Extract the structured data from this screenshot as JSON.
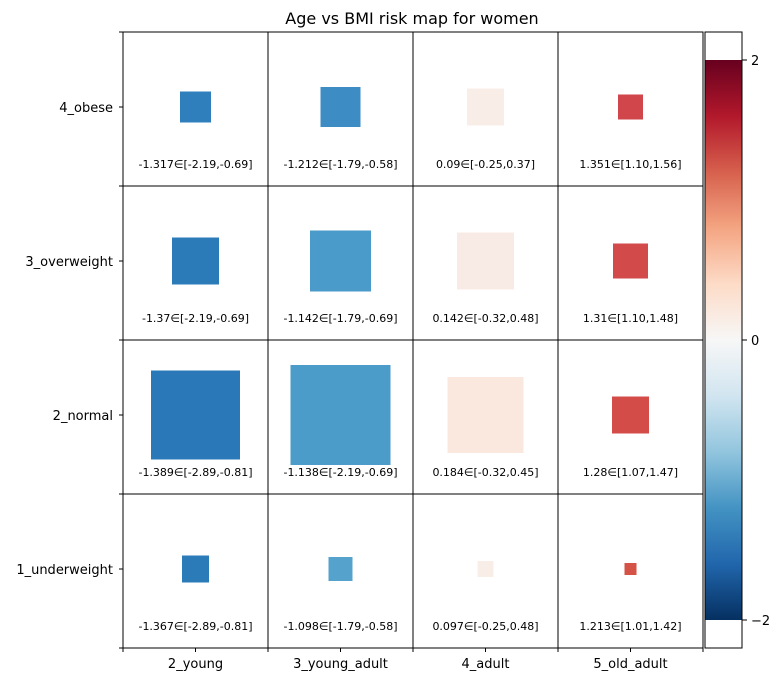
{
  "chart_data": {
    "type": "heatmap",
    "title": "Age vs BMI risk map for women",
    "x_categories": [
      "2_young",
      "3_young_adult",
      "4_adult",
      "5_old_adult"
    ],
    "y_categories": [
      "4_obese",
      "3_overweight",
      "2_normal",
      "1_underweight"
    ],
    "cells": [
      [
        {
          "value": -1.317,
          "ci": "[-2.19,-0.69]",
          "label": "-1.317∈[-2.19,-0.69]",
          "size": 0.31,
          "color": "#2f7fbc"
        },
        {
          "value": -1.212,
          "ci": "[-1.79,-0.58]",
          "label": "-1.212∈[-1.79,-0.58]",
          "size": 0.4,
          "color": "#3d8dc4"
        },
        {
          "value": 0.09,
          "ci": "[-0.25,0.37]",
          "label": "0.09∈[-0.25,0.37]",
          "size": 0.37,
          "color": "#f9ede8"
        },
        {
          "value": 1.351,
          "ci": "[1.10,1.56]",
          "label": "1.351∈[1.10,1.56]",
          "size": 0.25,
          "color": "#d0464a"
        }
      ],
      [
        {
          "value": -1.37,
          "ci": "[-2.19,-0.69]",
          "label": "-1.37∈[-2.19,-0.69]",
          "size": 0.47,
          "color": "#2c7bb9"
        },
        {
          "value": -1.142,
          "ci": "[-1.79,-0.69]",
          "label": "-1.142∈[-1.79,-0.69]",
          "size": 0.61,
          "color": "#4a9bc9"
        },
        {
          "value": 0.142,
          "ci": "[-0.32,0.48]",
          "label": "0.142∈[-0.32,0.48]",
          "size": 0.57,
          "color": "#f8ebe5"
        },
        {
          "value": 1.31,
          "ci": "[1.10,1.48]",
          "label": "1.31∈[1.10,1.48]",
          "size": 0.35,
          "color": "#d24a4a"
        }
      ],
      [
        {
          "value": -1.389,
          "ci": "[-2.89,-0.81]",
          "label": "-1.389∈[-2.89,-0.81]",
          "size": 0.89,
          "color": "#2a78b7"
        },
        {
          "value": -1.138,
          "ci": "[-2.19,-0.69]",
          "label": "-1.138∈[-2.19,-0.69]",
          "size": 1.0,
          "color": "#4b9cc9"
        },
        {
          "value": 0.184,
          "ci": "[-0.32,0.45]",
          "label": "0.184∈[-0.32,0.45]",
          "size": 0.76,
          "color": "#fae8df"
        },
        {
          "value": 1.28,
          "ci": "[1.07,1.47]",
          "label": "1.28∈[1.07,1.47]",
          "size": 0.37,
          "color": "#d34c48"
        }
      ],
      [
        {
          "value": -1.367,
          "ci": "[-2.89,-0.81]",
          "label": "-1.367∈[-2.89,-0.81]",
          "size": 0.27,
          "color": "#2c7bb9"
        },
        {
          "value": -1.098,
          "ci": "[-1.79,-0.58]",
          "label": "-1.098∈[-1.79,-0.58]",
          "size": 0.24,
          "color": "#55a3cd"
        },
        {
          "value": 0.097,
          "ci": "[-0.25,0.48]",
          "label": "0.097∈[-0.25,0.48]",
          "size": 0.16,
          "color": "#f9ede8"
        },
        {
          "value": 1.213,
          "ci": "[1.01,1.42]",
          "label": "1.213∈[1.01,1.42]",
          "size": 0.12,
          "color": "#d55247"
        }
      ]
    ],
    "colorbar": {
      "range": [
        -2.2,
        2.2
      ],
      "ticks": [
        {
          "value": 2,
          "label": "2"
        },
        {
          "value": 0,
          "label": "0"
        },
        {
          "value": -2,
          "label": "−2"
        }
      ],
      "colormap": "RdBu_r",
      "stops": [
        "#053061",
        "#2166ac",
        "#4393c3",
        "#92c5de",
        "#d1e5f0",
        "#f7f7f7",
        "#fddbc7",
        "#f4a582",
        "#d6604d",
        "#b2182b",
        "#67001f"
      ]
    }
  }
}
